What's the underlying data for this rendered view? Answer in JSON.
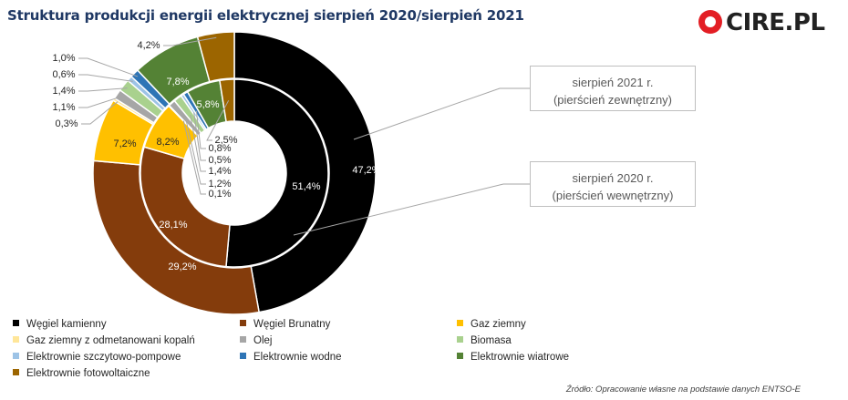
{
  "header": {
    "title": "Struktura produkcji energii elektrycznej sierpień 2020/sierpień 2021"
  },
  "logo": {
    "text": "CIRE.PL",
    "color": "#e31e24"
  },
  "callouts": [
    {
      "line1": "sierpień 2021 r.",
      "line2": "(pierścień zewnętrzny)"
    },
    {
      "line1": "sierpień 2020 r.",
      "line2": "(pierścień wewnętrzny)"
    }
  ],
  "source": "Źródło: Opracowanie własne na podstawie danych ENTSO-E",
  "chart_data": {
    "type": "donut",
    "title": "Struktura produkcji energii elektrycznej sierpień 2020/sierpień 2021",
    "categories": [
      "Węgiel kamienny",
      "Węgiel Brunatny",
      "Gaz ziemny",
      "Gaz ziemny z odmetanowani kopalń",
      "Olej",
      "Biomasa",
      "Elektrownie szczytowo-pompowe",
      "Elektrownie wodne",
      "Elektrownie wiatrowe",
      "Elektrownie fotowoltaiczne"
    ],
    "colors": [
      "#000000",
      "#843c0c",
      "#ffc000",
      "#ffe699",
      "#a6a6a6",
      "#a9d18e",
      "#9dc3e6",
      "#2e75b6",
      "#548235",
      "#9c6500"
    ],
    "series": [
      {
        "name": "sierpień 2021 r.",
        "ring": "outer",
        "values": [
          47.2,
          29.2,
          7.2,
          0.3,
          1.1,
          1.4,
          0.6,
          1.0,
          7.8,
          4.2
        ],
        "labels": [
          "47,2%",
          "29,2%",
          "7,2%",
          "0,3%",
          "1,1%",
          "1,4%",
          "0,6%",
          "1,0%",
          "7,8%",
          "4,2%"
        ]
      },
      {
        "name": "sierpień 2020 r.",
        "ring": "inner",
        "values": [
          51.4,
          28.1,
          8.2,
          0.1,
          1.2,
          1.4,
          0.5,
          0.8,
          5.8,
          2.5
        ],
        "labels": [
          "51,4%",
          "28,1%",
          "8,2%",
          "0,1%",
          "1,2%",
          "1,4%",
          "0,5%",
          "0,8%",
          "5,8%",
          "2,5%"
        ]
      }
    ],
    "legend_position": "bottom"
  }
}
